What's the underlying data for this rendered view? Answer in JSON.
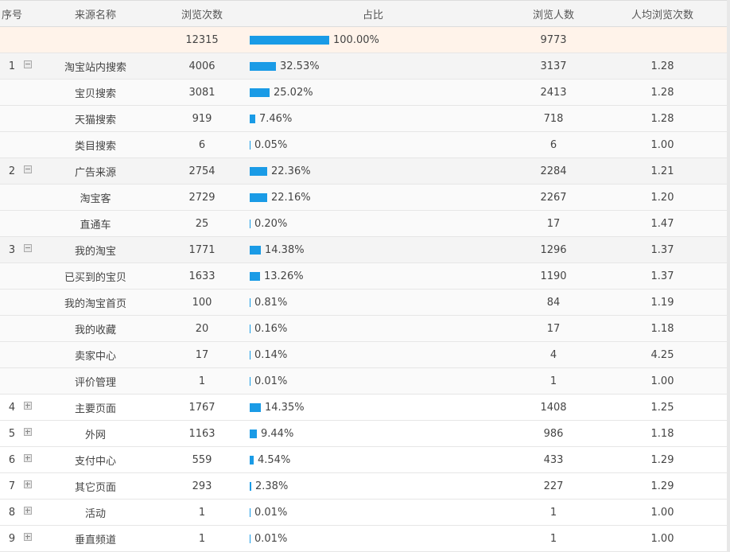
{
  "headers": {
    "index": "序号",
    "source": "来源名称",
    "views": "浏览次数",
    "share": "占比",
    "visitors": "浏览人数",
    "avg": "人均浏览次数"
  },
  "total": {
    "views": "12315",
    "share": "100.00%",
    "share_value": 100,
    "visitors": "9773"
  },
  "rows": [
    {
      "type": "group",
      "index": "1",
      "toggle": "minus",
      "name": "淘宝站内搜索",
      "views": "4006",
      "share": "32.53%",
      "share_value": 32.53,
      "visitors": "3137",
      "avg": "1.28"
    },
    {
      "type": "child",
      "name": "宝贝搜索",
      "views": "3081",
      "share": "25.02%",
      "share_value": 25.02,
      "visitors": "2413",
      "avg": "1.28"
    },
    {
      "type": "child",
      "name": "天猫搜索",
      "views": "919",
      "share": "7.46%",
      "share_value": 7.46,
      "visitors": "718",
      "avg": "1.28"
    },
    {
      "type": "child",
      "name": "类目搜索",
      "views": "6",
      "share": "0.05%",
      "share_value": 0.05,
      "visitors": "6",
      "avg": "1.00"
    },
    {
      "type": "group",
      "index": "2",
      "toggle": "minus",
      "name": "广告来源",
      "views": "2754",
      "share": "22.36%",
      "share_value": 22.36,
      "visitors": "2284",
      "avg": "1.21"
    },
    {
      "type": "child",
      "name": "淘宝客",
      "views": "2729",
      "share": "22.16%",
      "share_value": 22.16,
      "visitors": "2267",
      "avg": "1.20"
    },
    {
      "type": "child",
      "name": "直通车",
      "views": "25",
      "share": "0.20%",
      "share_value": 0.2,
      "visitors": "17",
      "avg": "1.47"
    },
    {
      "type": "group",
      "index": "3",
      "toggle": "minus",
      "name": "我的淘宝",
      "views": "1771",
      "share": "14.38%",
      "share_value": 14.38,
      "visitors": "1296",
      "avg": "1.37"
    },
    {
      "type": "child",
      "name": "已买到的宝贝",
      "views": "1633",
      "share": "13.26%",
      "share_value": 13.26,
      "visitors": "1190",
      "avg": "1.37"
    },
    {
      "type": "child",
      "name": "我的淘宝首页",
      "views": "100",
      "share": "0.81%",
      "share_value": 0.81,
      "visitors": "84",
      "avg": "1.19"
    },
    {
      "type": "child",
      "name": "我的收藏",
      "views": "20",
      "share": "0.16%",
      "share_value": 0.16,
      "visitors": "17",
      "avg": "1.18"
    },
    {
      "type": "child",
      "name": "卖家中心",
      "views": "17",
      "share": "0.14%",
      "share_value": 0.14,
      "visitors": "4",
      "avg": "4.25"
    },
    {
      "type": "child",
      "name": "评价管理",
      "views": "1",
      "share": "0.01%",
      "share_value": 0.01,
      "visitors": "1",
      "avg": "1.00"
    },
    {
      "type": "collapsed",
      "index": "4",
      "toggle": "plus",
      "name": "主要页面",
      "views": "1767",
      "share": "14.35%",
      "share_value": 14.35,
      "visitors": "1408",
      "avg": "1.25"
    },
    {
      "type": "collapsed",
      "index": "5",
      "toggle": "plus",
      "name": "外网",
      "views": "1163",
      "share": "9.44%",
      "share_value": 9.44,
      "visitors": "986",
      "avg": "1.18"
    },
    {
      "type": "collapsed",
      "index": "6",
      "toggle": "plus",
      "name": "支付中心",
      "views": "559",
      "share": "4.54%",
      "share_value": 4.54,
      "visitors": "433",
      "avg": "1.29"
    },
    {
      "type": "collapsed",
      "index": "7",
      "toggle": "plus",
      "name": "其它页面",
      "views": "293",
      "share": "2.38%",
      "share_value": 2.38,
      "visitors": "227",
      "avg": "1.29"
    },
    {
      "type": "collapsed",
      "index": "8",
      "toggle": "plus",
      "name": "活动",
      "views": "1",
      "share": "0.01%",
      "share_value": 0.01,
      "visitors": "1",
      "avg": "1.00"
    },
    {
      "type": "collapsed",
      "index": "9",
      "toggle": "plus",
      "name": "垂直频道",
      "views": "1",
      "share": "0.01%",
      "share_value": 0.01,
      "visitors": "1",
      "avg": "1.00"
    }
  ],
  "colors": {
    "bar": "#1a9be6",
    "total_row_bg": "#fff3ea",
    "header_bg": "#f4f4f4"
  }
}
